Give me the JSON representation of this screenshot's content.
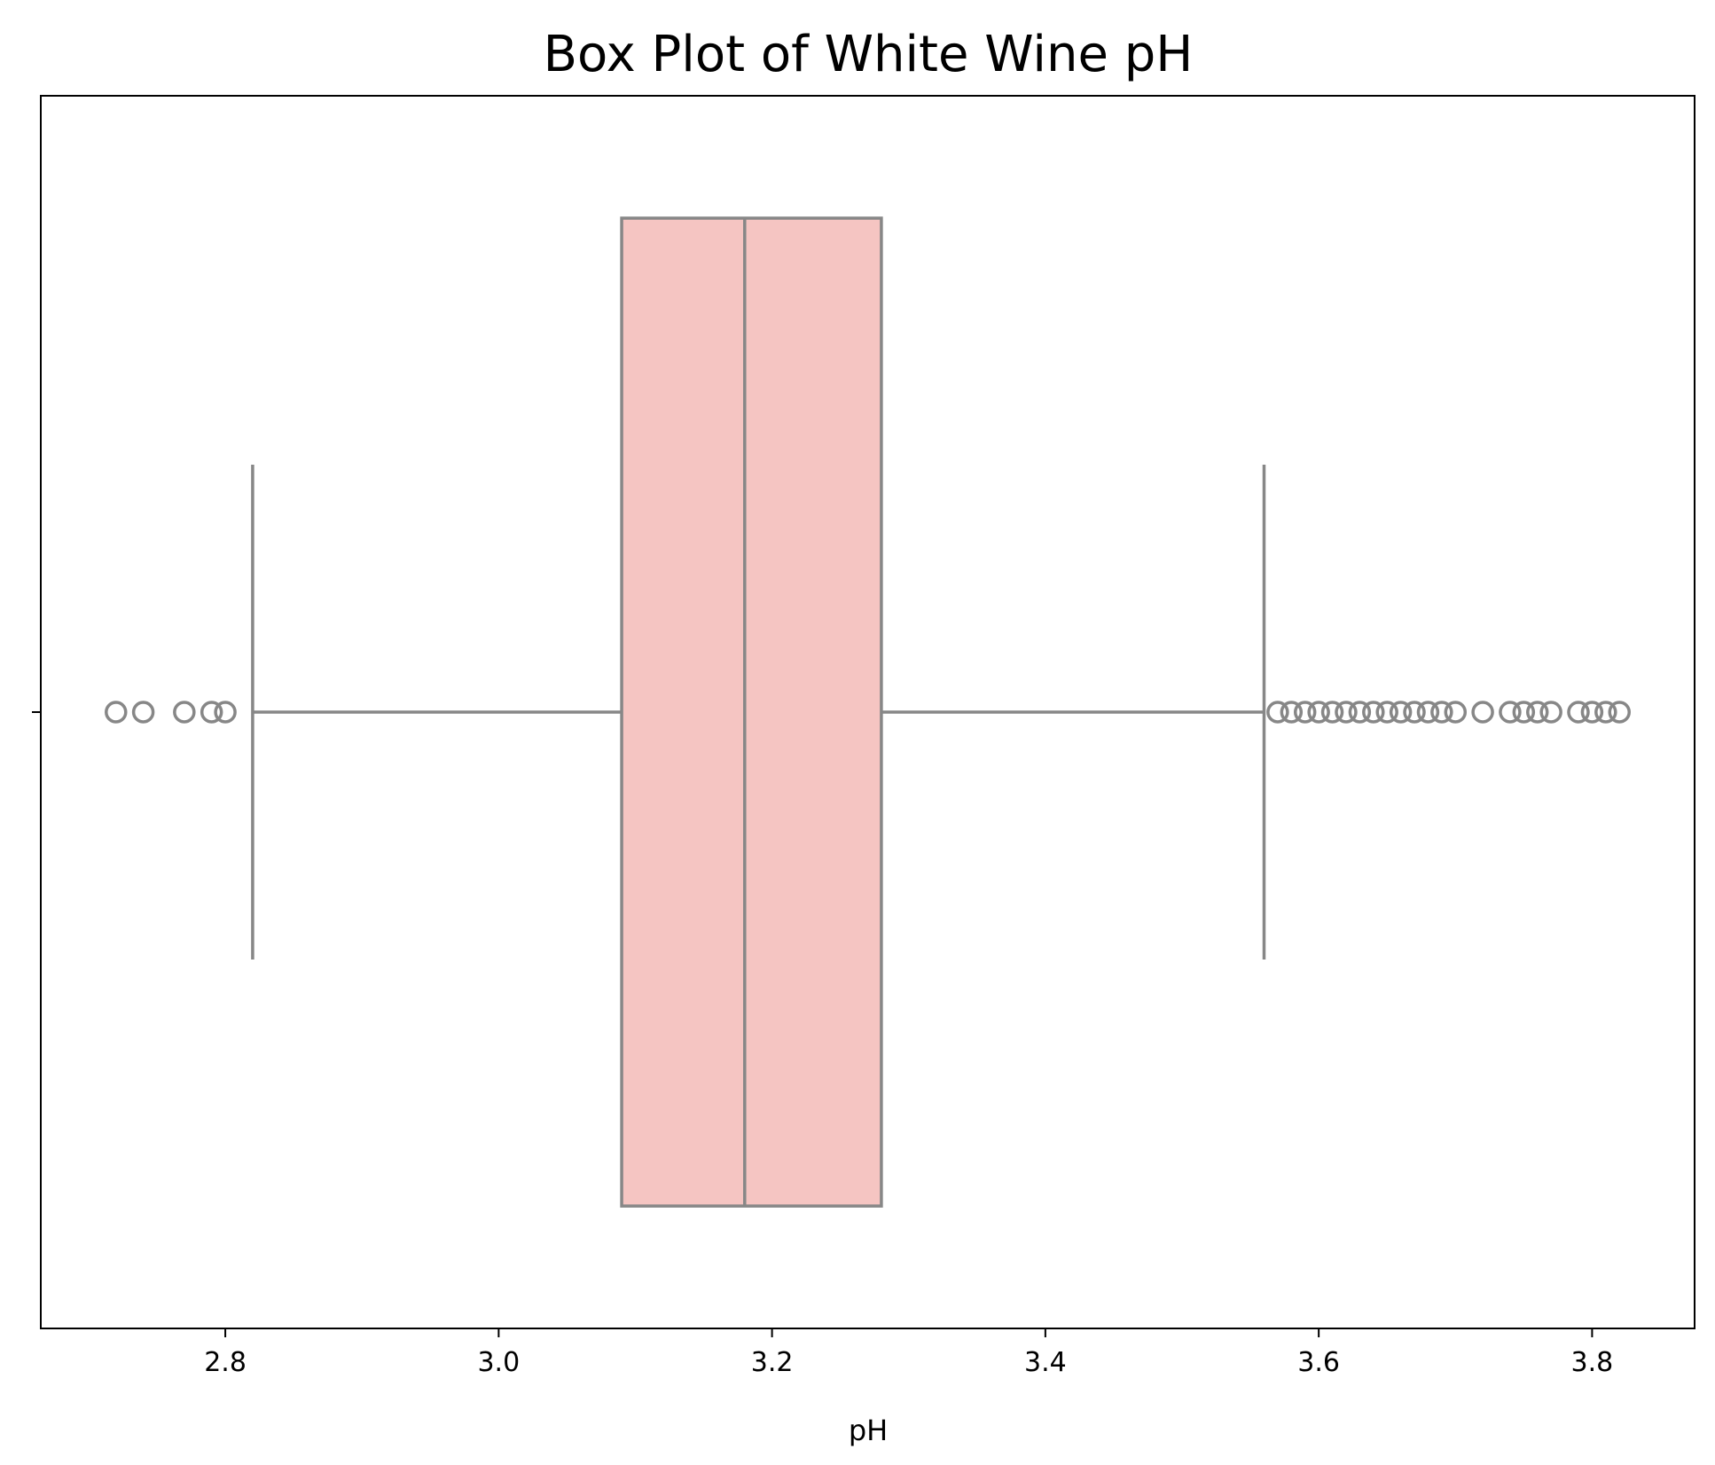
{
  "chart_data": {
    "type": "box",
    "title": "Box Plot of White Wine pH",
    "xlabel": "pH",
    "ylabel": "",
    "xlim": [
      2.665,
      3.875
    ],
    "xticks": [
      2.8,
      3.0,
      3.2,
      3.4,
      3.6,
      3.8
    ],
    "xtick_labels": [
      "2.8",
      "3.0",
      "3.2",
      "3.4",
      "3.6",
      "3.8"
    ],
    "grid": false,
    "box": {
      "whisker_low": 2.82,
      "q1": 3.09,
      "median": 3.18,
      "q3": 3.28,
      "whisker_high": 3.56,
      "outliers": [
        2.72,
        2.74,
        2.77,
        2.79,
        2.8,
        3.57,
        3.58,
        3.59,
        3.6,
        3.61,
        3.62,
        3.63,
        3.64,
        3.65,
        3.66,
        3.67,
        3.68,
        3.69,
        3.7,
        3.72,
        3.74,
        3.75,
        3.76,
        3.77,
        3.79,
        3.8,
        3.81,
        3.82
      ]
    },
    "colors": {
      "box_fill": "#f5c5c2",
      "line": "#878787",
      "axes": "#000000"
    }
  }
}
